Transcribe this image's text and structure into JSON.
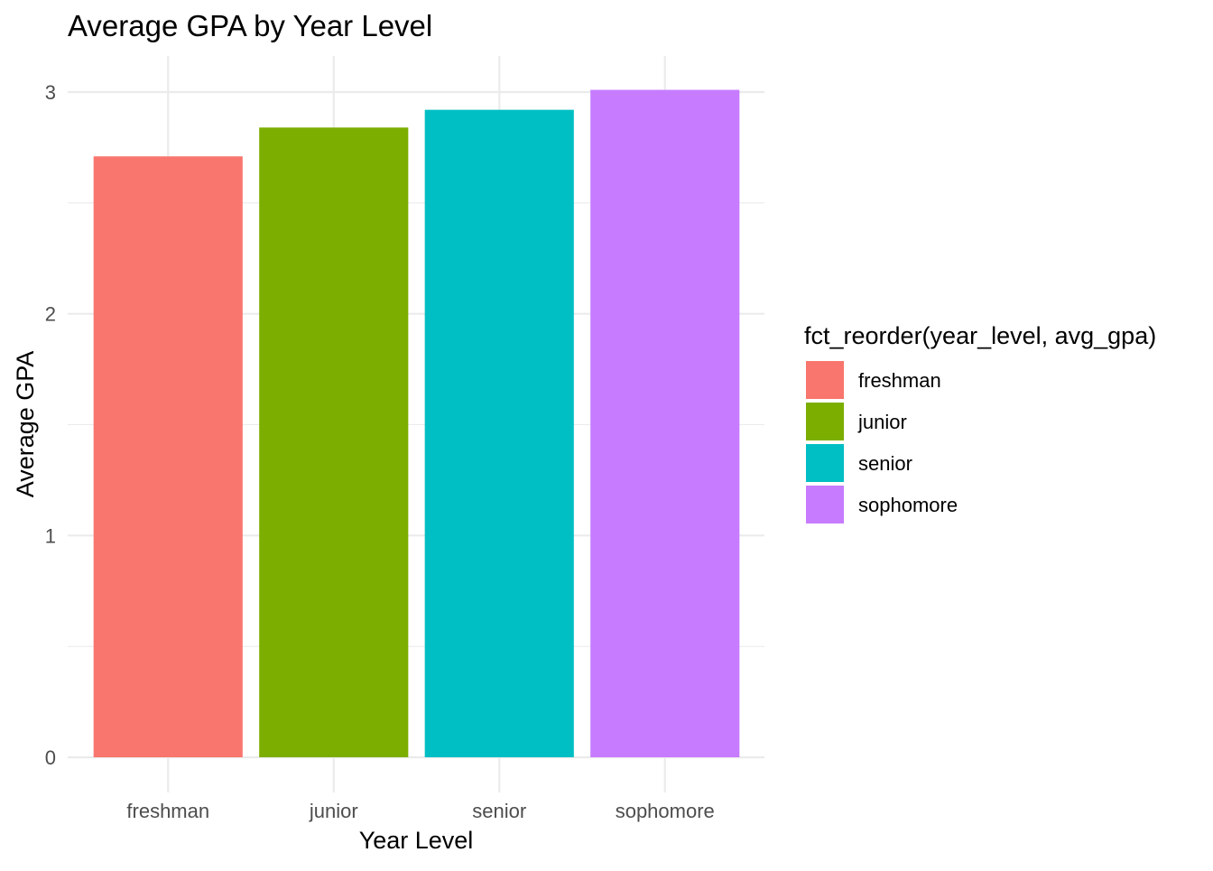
{
  "chart_data": {
    "type": "bar",
    "title": "Average GPA by Year Level",
    "xlabel": "Year Level",
    "ylabel": "Average GPA",
    "categories": [
      "freshman",
      "junior",
      "senior",
      "sophomore"
    ],
    "values": [
      2.71,
      2.84,
      2.92,
      3.01
    ],
    "colors": [
      "#F8766D",
      "#7CAE00",
      "#00BFC4",
      "#C77CFF"
    ],
    "ylim": [
      0,
      3.1
    ],
    "y_ticks": [
      "0",
      "1",
      "2",
      "3"
    ],
    "y_tick_values": [
      0,
      1,
      2,
      3
    ],
    "grid": true,
    "legend": {
      "title": "fct_reorder(year_level, avg_gpa)",
      "placement": "right",
      "entries": [
        "freshman",
        "junior",
        "senior",
        "sophomore"
      ]
    }
  }
}
